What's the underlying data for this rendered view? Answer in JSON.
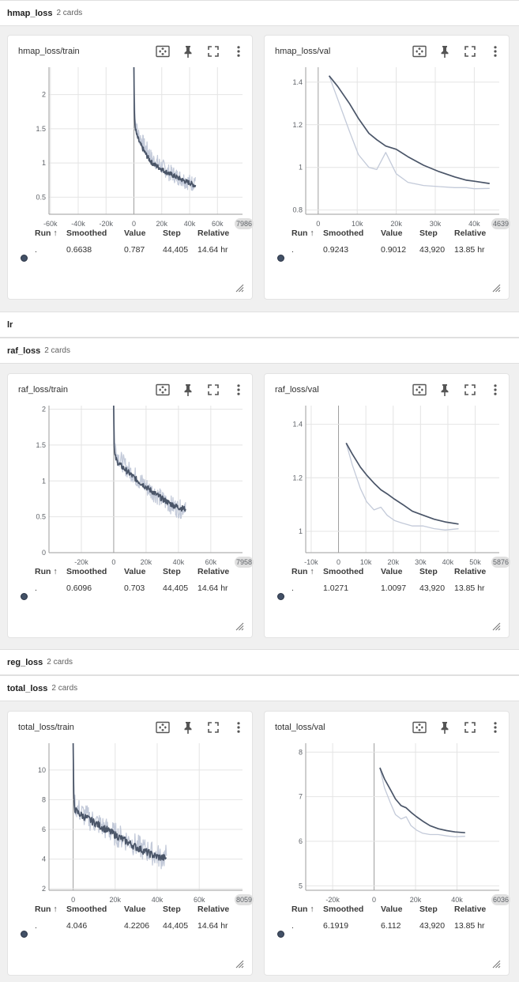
{
  "groups": {
    "hmap": {
      "title": "hmap_loss",
      "count": "2 cards"
    },
    "lr": {
      "title": "lr",
      "count": ""
    },
    "raf": {
      "title": "raf_loss",
      "count": "2 cards"
    },
    "reg": {
      "title": "reg_loss",
      "count": "2 cards"
    },
    "total": {
      "title": "total_loss",
      "count": "2 cards"
    }
  },
  "table_headers": {
    "run": "Run",
    "sort_arrow": "↑",
    "smoothed": "Smoothed",
    "value": "Value",
    "step": "Step",
    "relative": "Relative"
  },
  "cards": {
    "hmap_train": {
      "title": "hmap_loss/train",
      "run": ".",
      "smoothed": "0.6638",
      "value": "0.787",
      "step": "44,405",
      "relative": "14.64 hr"
    },
    "hmap_val": {
      "title": "hmap_loss/val",
      "run": ".",
      "smoothed": "0.9243",
      "value": "0.9012",
      "step": "43,920",
      "relative": "13.85 hr"
    },
    "raf_train": {
      "title": "raf_loss/train",
      "run": ".",
      "smoothed": "0.6096",
      "value": "0.703",
      "step": "44,405",
      "relative": "14.64 hr"
    },
    "raf_val": {
      "title": "raf_loss/val",
      "run": ".",
      "smoothed": "1.0271",
      "value": "1.0097",
      "step": "43,920",
      "relative": "13.85 hr"
    },
    "total_train": {
      "title": "total_loss/train",
      "run": ".",
      "smoothed": "4.046",
      "value": "4.2206",
      "step": "44,405",
      "relative": "14.64 hr"
    },
    "total_val": {
      "title": "total_loss/val",
      "run": ".",
      "smoothed": "6.1919",
      "value": "6.112",
      "step": "43,920",
      "relative": "13.85 hr"
    }
  },
  "icons": [
    "fit-domain-icon",
    "pin-icon",
    "fullscreen-icon",
    "more-vert-icon",
    "resize-handle-icon"
  ],
  "colors": {
    "smoothed": "#4a5568",
    "raw": "#c3cad9",
    "grid": "#e4e4e4",
    "axis": "#9e9e9e"
  },
  "chart_data": [
    {
      "id": "hmap_train",
      "type": "line",
      "x_ticks": [
        "-60k",
        "-40k",
        "-20k",
        "0",
        "20k",
        "40k",
        "60k",
        "7986"
      ],
      "y_ticks": [
        "0.5",
        "1",
        "1.5",
        "2"
      ],
      "xlim": [
        -61000,
        78000
      ],
      "ylim": [
        0.25,
        2.4
      ],
      "series": [
        {
          "role": "raw",
          "x": [
            0,
            300,
            800,
            1500,
            2500,
            4000,
            6000,
            8000,
            10000,
            13000,
            16000,
            19000,
            22000,
            25000,
            28000,
            31000,
            34000,
            37000,
            40000,
            42000,
            44405
          ],
          "y": [
            2.4,
            1.95,
            1.75,
            1.55,
            1.45,
            1.38,
            1.32,
            1.22,
            1.18,
            1.05,
            1.02,
            0.96,
            0.92,
            0.86,
            0.84,
            0.8,
            0.78,
            0.74,
            0.72,
            0.7,
            0.787
          ],
          "noise": 0.12
        },
        {
          "role": "smoothed",
          "x": [
            0,
            300,
            800,
            1500,
            2500,
            4000,
            6000,
            8000,
            10000,
            13000,
            16000,
            19000,
            22000,
            25000,
            28000,
            31000,
            34000,
            37000,
            40000,
            42000,
            44405
          ],
          "y": [
            2.4,
            1.7,
            1.55,
            1.45,
            1.38,
            1.3,
            1.22,
            1.15,
            1.08,
            1.0,
            0.96,
            0.92,
            0.88,
            0.85,
            0.82,
            0.79,
            0.76,
            0.73,
            0.71,
            0.69,
            0.6638
          ],
          "noise": 0.035
        }
      ]
    },
    {
      "id": "hmap_val",
      "type": "line",
      "x_ticks": [
        "0",
        "10k",
        "20k",
        "30k",
        "40k",
        "4639"
      ],
      "y_ticks": [
        "0.8",
        "1",
        "1.2",
        "1.4"
      ],
      "xlim": [
        -3200,
        46400
      ],
      "ylim": [
        0.78,
        1.47
      ],
      "series": [
        {
          "role": "raw",
          "x": [
            2800,
            5000,
            8000,
            10300,
            13000,
            15000,
            17300,
            20000,
            23000,
            27000,
            31000,
            35000,
            38000,
            40000,
            43920
          ],
          "y": [
            1.43,
            1.32,
            1.17,
            1.06,
            1.0,
            0.99,
            1.07,
            0.97,
            0.93,
            0.915,
            0.91,
            0.905,
            0.905,
            0.9,
            0.9012
          ]
        },
        {
          "role": "smoothed",
          "x": [
            2800,
            5000,
            8000,
            10300,
            13000,
            15000,
            17300,
            20000,
            23000,
            27000,
            31000,
            35000,
            38000,
            40000,
            43920
          ],
          "y": [
            1.43,
            1.38,
            1.3,
            1.23,
            1.16,
            1.13,
            1.1,
            1.085,
            1.05,
            1.01,
            0.98,
            0.955,
            0.94,
            0.935,
            0.9243
          ]
        }
      ]
    },
    {
      "id": "raf_train",
      "type": "line",
      "x_ticks": [
        "-20k",
        "0",
        "20k",
        "40k",
        "60k",
        "7958"
      ],
      "y_ticks": [
        "0",
        "0.5",
        "1",
        "1.5",
        "2"
      ],
      "xlim": [
        -40000,
        79600
      ],
      "ylim": [
        0,
        2.05
      ],
      "series": [
        {
          "role": "raw",
          "x": [
            0,
            300,
            800,
            1500,
            2500,
            4000,
            6000,
            9000,
            12000,
            15000,
            18000,
            21000,
            24000,
            27000,
            30000,
            33000,
            36000,
            39000,
            42000,
            44405
          ],
          "y": [
            2.05,
            1.7,
            1.5,
            1.42,
            1.35,
            1.3,
            1.24,
            1.15,
            1.1,
            1.02,
            0.97,
            0.9,
            0.85,
            0.8,
            0.74,
            0.7,
            0.66,
            0.62,
            0.6,
            0.703
          ],
          "noise": 0.13
        },
        {
          "role": "smoothed",
          "x": [
            0,
            300,
            800,
            1500,
            2500,
            4000,
            6000,
            9000,
            12000,
            15000,
            18000,
            21000,
            24000,
            27000,
            30000,
            33000,
            36000,
            39000,
            42000,
            44405
          ],
          "y": [
            2.05,
            1.45,
            1.35,
            1.3,
            1.26,
            1.22,
            1.18,
            1.12,
            1.06,
            1.0,
            0.95,
            0.9,
            0.85,
            0.8,
            0.75,
            0.71,
            0.67,
            0.64,
            0.62,
            0.6096
          ],
          "noise": 0.04
        }
      ]
    },
    {
      "id": "raf_val",
      "type": "line",
      "x_ticks": [
        "-10k",
        "0",
        "10k",
        "20k",
        "30k",
        "40k",
        "50k",
        "5876"
      ],
      "y_ticks": [
        "1",
        "1.2",
        "1.4"
      ],
      "xlim": [
        -12000,
        58800
      ],
      "ylim": [
        0.92,
        1.47
      ],
      "series": [
        {
          "role": "raw",
          "x": [
            2800,
            5000,
            8000,
            10300,
            13000,
            15500,
            17800,
            20500,
            23500,
            27000,
            31000,
            35000,
            39000,
            43920
          ],
          "y": [
            1.33,
            1.25,
            1.16,
            1.11,
            1.08,
            1.09,
            1.06,
            1.04,
            1.03,
            1.02,
            1.02,
            1.01,
            1.005,
            1.0097
          ]
        },
        {
          "role": "smoothed",
          "x": [
            2800,
            5000,
            8000,
            10300,
            13000,
            15500,
            17800,
            20500,
            23500,
            27000,
            31000,
            35000,
            39000,
            43920
          ],
          "y": [
            1.33,
            1.29,
            1.24,
            1.21,
            1.18,
            1.155,
            1.14,
            1.12,
            1.1,
            1.075,
            1.06,
            1.045,
            1.035,
            1.0271
          ]
        }
      ]
    },
    {
      "id": "total_train",
      "type": "line",
      "x_ticks": [
        "0",
        "20k",
        "40k",
        "60k",
        "8059"
      ],
      "y_ticks": [
        "2",
        "4",
        "6",
        "8",
        "10"
      ],
      "xlim": [
        -11500,
        80600
      ],
      "ylim": [
        1.9,
        11.8
      ],
      "series": [
        {
          "role": "raw",
          "x": [
            0,
            300,
            800,
            1500,
            2500,
            4000,
            6000,
            9000,
            12000,
            15000,
            18000,
            21000,
            24000,
            27000,
            30000,
            33000,
            36000,
            39000,
            42000,
            44405
          ],
          "y": [
            11.8,
            8.6,
            7.8,
            7.5,
            7.3,
            7.1,
            6.9,
            6.6,
            6.4,
            6.1,
            5.8,
            5.6,
            5.4,
            5.2,
            4.9,
            4.7,
            4.5,
            4.3,
            4.1,
            4.2206
          ],
          "noise": 0.8
        },
        {
          "role": "smoothed",
          "x": [
            0,
            300,
            800,
            1500,
            2500,
            4000,
            6000,
            9000,
            12000,
            15000,
            18000,
            21000,
            24000,
            27000,
            30000,
            33000,
            36000,
            39000,
            42000,
            44405
          ],
          "y": [
            11.8,
            8.0,
            7.4,
            7.2,
            7.1,
            6.95,
            6.8,
            6.55,
            6.3,
            6.05,
            5.8,
            5.55,
            5.3,
            5.05,
            4.8,
            4.6,
            4.4,
            4.2,
            4.1,
            4.046
          ],
          "noise": 0.25
        }
      ]
    },
    {
      "id": "total_val",
      "type": "line",
      "x_ticks": [
        "-20k",
        "0",
        "20k",
        "40k",
        "6036"
      ],
      "y_ticks": [
        "5",
        "6",
        "7",
        "8"
      ],
      "xlim": [
        -33000,
        60400
      ],
      "ylim": [
        4.9,
        8.2
      ],
      "series": [
        {
          "role": "raw",
          "x": [
            2800,
            5000,
            8000,
            10300,
            13000,
            15500,
            17800,
            20500,
            23500,
            27000,
            31000,
            35000,
            39000,
            43920
          ],
          "y": [
            7.65,
            7.2,
            6.85,
            6.6,
            6.5,
            6.55,
            6.35,
            6.25,
            6.18,
            6.15,
            6.15,
            6.12,
            6.1,
            6.112
          ]
        },
        {
          "role": "smoothed",
          "x": [
            2800,
            5000,
            8000,
            10300,
            13000,
            15500,
            17800,
            20500,
            23500,
            27000,
            31000,
            35000,
            39000,
            43920
          ],
          "y": [
            7.65,
            7.4,
            7.15,
            6.95,
            6.8,
            6.75,
            6.65,
            6.55,
            6.45,
            6.35,
            6.28,
            6.24,
            6.21,
            6.1919
          ]
        }
      ]
    }
  ]
}
